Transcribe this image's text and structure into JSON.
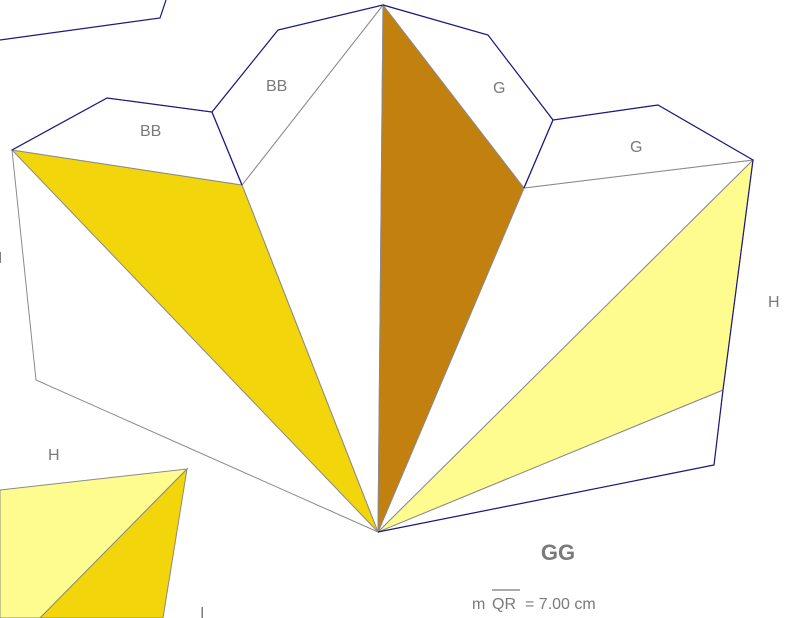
{
  "colors": {
    "dark_yellow": "#f2d50b",
    "brown": "#c2800e",
    "light_yellow": "#fffc8f",
    "navy_edge": "#1a1a80",
    "grey_edge": "#8a8a8a"
  },
  "labels": {
    "bb_left": "BB",
    "bb_right": "BB",
    "g_left": "G",
    "g_right": "G",
    "h_right": "H",
    "h_bottom": "H",
    "i_left": "I",
    "i_bottom": "I"
  },
  "title": "GG",
  "measurement": {
    "prefix": "m",
    "segment": "QR",
    "value": "= 7.00 cm"
  }
}
